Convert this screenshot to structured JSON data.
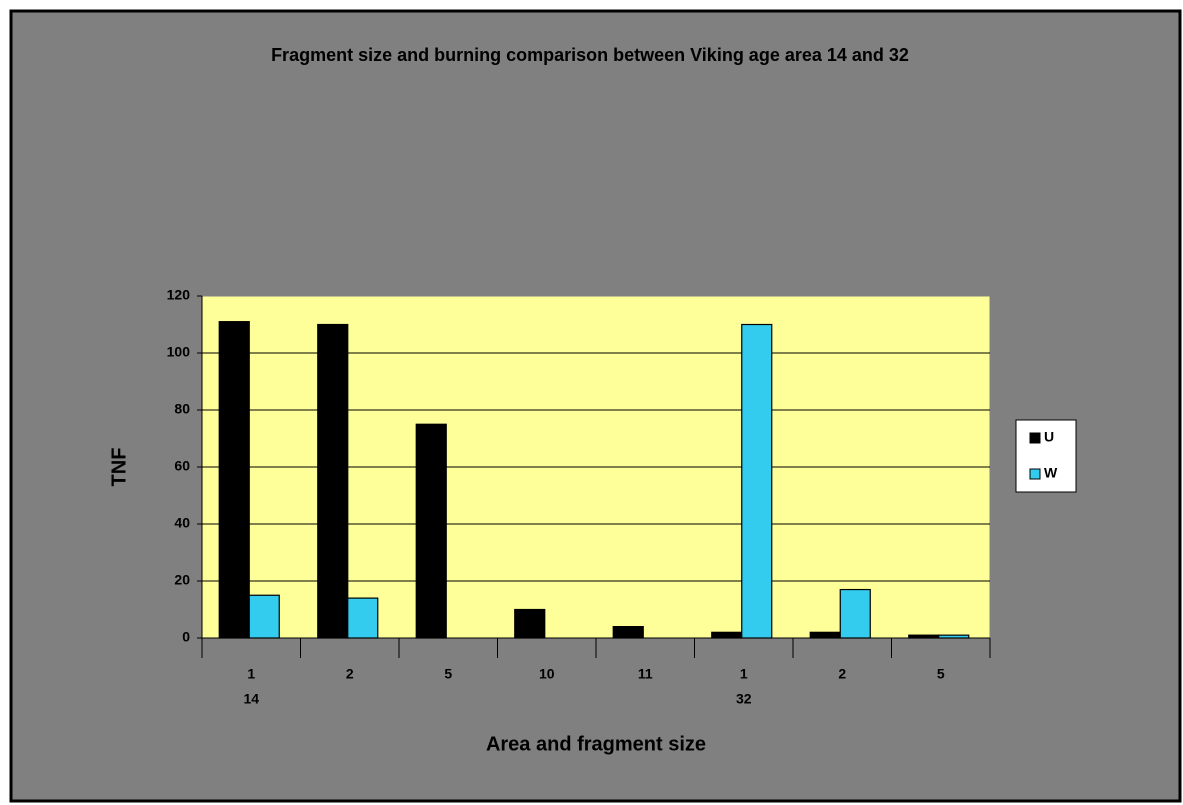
{
  "chart_data": {
    "type": "bar",
    "title": "Fragment size and burning comparison between Viking age area 14 and 32",
    "x_label": "Area and fragment size",
    "y_label": "TNF",
    "category_groups": [
      {
        "name": "14",
        "categories": [
          "1",
          "2",
          "5",
          "10",
          "11"
        ]
      },
      {
        "name": "32",
        "categories": [
          "1",
          "2",
          "5"
        ]
      }
    ],
    "series": [
      {
        "name": "U",
        "color": "#000000",
        "values": [
          111,
          110,
          75,
          10,
          4,
          2,
          2,
          1
        ]
      },
      {
        "name": "W",
        "color": "#33ccee",
        "values": [
          15,
          14,
          0,
          0,
          0,
          110,
          17,
          1
        ]
      }
    ],
    "ylim": [
      0,
      120
    ],
    "yticks": [
      0,
      20,
      40,
      60,
      80,
      100,
      120
    ],
    "grid": true,
    "legend": "right"
  }
}
